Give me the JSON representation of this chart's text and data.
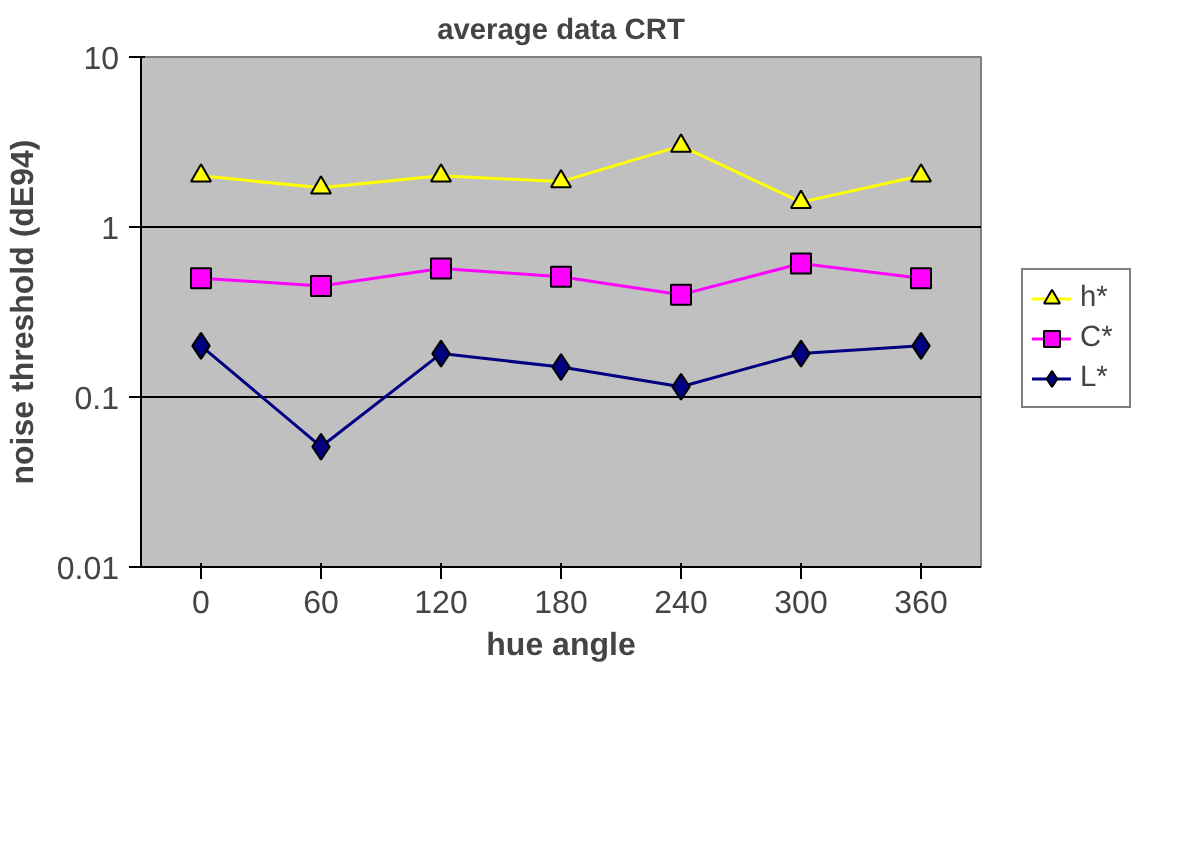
{
  "chart_data": {
    "type": "line",
    "title": "average data CRT",
    "xlabel": "hue angle",
    "ylabel": "noise threshold (dE94)",
    "categories": [
      "0",
      "60",
      "120",
      "180",
      "240",
      "300",
      "360"
    ],
    "log": "y",
    "ylim": [
      0.01,
      10
    ],
    "yticks": [
      0.01,
      0.1,
      1,
      10
    ],
    "grid": "y",
    "legend": "right",
    "series": [
      {
        "name": "h*",
        "color": "#ffff00",
        "marker": "triangle",
        "values": [
          2.0,
          1.7,
          2.0,
          1.85,
          3.0,
          1.4,
          2.0
        ]
      },
      {
        "name": "C*",
        "color": "#ff00ff",
        "marker": "square",
        "values": [
          0.5,
          0.45,
          0.57,
          0.51,
          0.4,
          0.61,
          0.5
        ]
      },
      {
        "name": "L*",
        "color": "#000080",
        "marker": "diamond",
        "values": [
          0.2,
          0.051,
          0.18,
          0.15,
          0.115,
          0.18,
          0.2
        ]
      }
    ]
  }
}
